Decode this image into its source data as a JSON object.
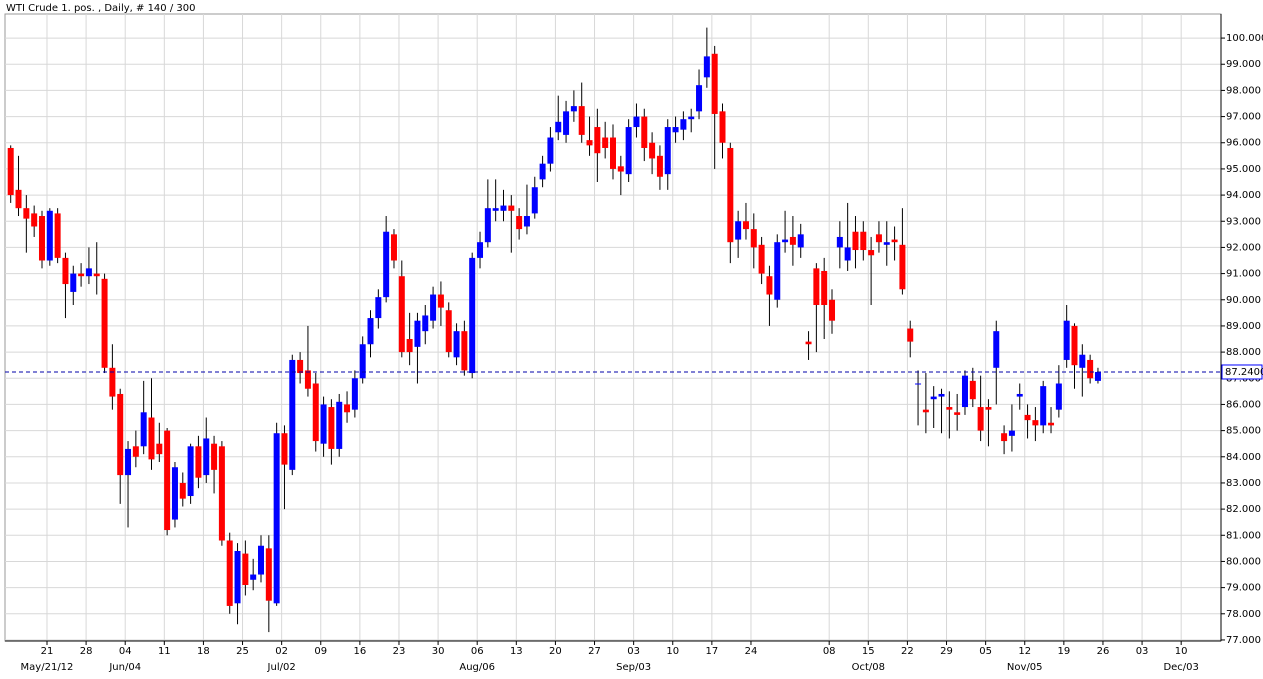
{
  "chart_data": {
    "type": "candlestick",
    "title": "WTI Crude 1. pos. , Daily, # 140 / 300",
    "categories": [
      null,
      null,
      null,
      null,
      "21",
      null,
      null,
      null,
      null,
      "28",
      null,
      null,
      null,
      null,
      "04",
      null,
      null,
      null,
      null,
      "11",
      null,
      null,
      null,
      null,
      "18",
      null,
      null,
      null,
      null,
      "25",
      null,
      null,
      null,
      null,
      "02",
      null,
      null,
      null,
      null,
      "09",
      null,
      null,
      null,
      null,
      "16",
      null,
      null,
      null,
      null,
      "23",
      null,
      null,
      null,
      null,
      "30",
      null,
      null,
      null,
      null,
      "06",
      null,
      null,
      null,
      null,
      "13",
      null,
      null,
      null,
      null,
      "20",
      null,
      null,
      null,
      null,
      "27",
      null,
      null,
      null,
      null,
      "03",
      null,
      null,
      null,
      null,
      "10",
      null,
      null,
      null,
      null,
      "17",
      null,
      null,
      null,
      null,
      "24",
      null,
      null,
      null,
      null,
      null,
      null,
      null,
      null,
      null,
      "08",
      null,
      null,
      null,
      null,
      "15",
      null,
      null,
      null,
      null,
      "22",
      null,
      null,
      null,
      null,
      "29",
      null,
      null,
      null,
      null,
      "05",
      null,
      null,
      null,
      null,
      "12",
      null,
      null,
      null,
      null,
      "19",
      null,
      null,
      null,
      null,
      "26",
      null,
      null,
      null,
      null,
      "03",
      null,
      null,
      null,
      null,
      "10"
    ],
    "period_labels": [
      null,
      null,
      null,
      null,
      "May/21/12",
      null,
      null,
      null,
      null,
      null,
      null,
      null,
      null,
      null,
      "Jun/04",
      null,
      null,
      null,
      null,
      null,
      null,
      null,
      null,
      null,
      null,
      null,
      null,
      null,
      null,
      null,
      null,
      null,
      null,
      null,
      "Jul/02",
      null,
      null,
      null,
      null,
      null,
      null,
      null,
      null,
      null,
      null,
      null,
      null,
      null,
      null,
      null,
      null,
      null,
      null,
      null,
      null,
      null,
      null,
      null,
      null,
      "Aug/06",
      null,
      null,
      null,
      null,
      null,
      null,
      null,
      null,
      null,
      null,
      null,
      null,
      null,
      null,
      null,
      null,
      null,
      null,
      null,
      "Sep/03",
      null,
      null,
      null,
      null,
      null,
      null,
      null,
      null,
      null,
      null,
      null,
      null,
      null,
      null,
      null,
      null,
      null,
      null,
      null,
      null,
      null,
      null,
      null,
      null,
      null,
      null,
      null,
      null,
      null,
      "Oct/08",
      null,
      null,
      null,
      null,
      null,
      null,
      null,
      null,
      null,
      null,
      null,
      null,
      null,
      null,
      null,
      null,
      null,
      null,
      null,
      "Nov/05",
      null,
      null,
      null,
      null,
      null,
      null,
      null,
      null,
      null,
      null,
      null,
      null,
      null,
      null,
      null,
      null,
      null,
      null,
      null,
      "Dec/03",
      null,
      null,
      null,
      null,
      null
    ],
    "open": [
      95.8,
      94.2,
      93.5,
      93.3,
      93.2,
      91.5,
      93.3,
      91.6,
      90.3,
      91.0,
      90.9,
      91.0,
      90.8,
      87.4,
      86.4,
      83.3,
      84.4,
      84.4,
      85.5,
      84.5,
      85.0,
      81.6,
      83.0,
      82.5,
      84.4,
      83.3,
      84.5,
      84.4,
      80.8,
      78.4,
      80.3,
      79.3,
      79.5,
      80.5,
      78.4,
      84.9,
      83.5,
      87.7,
      87.3,
      86.8,
      84.5,
      85.9,
      84.3,
      86.0,
      85.8,
      87.0,
      88.3,
      89.3,
      90.1,
      92.5,
      90.9,
      88.5,
      88.2,
      88.8,
      89.2,
      90.2,
      89.6,
      87.8,
      88.8,
      87.2,
      91.6,
      92.2,
      93.4,
      93.4,
      93.6,
      93.2,
      92.8,
      93.3,
      94.6,
      95.2,
      96.4,
      96.3,
      97.2,
      97.4,
      96.1,
      96.6,
      96.2,
      96.2,
      95.1,
      94.8,
      96.6,
      97.0,
      96.0,
      95.5,
      94.8,
      96.4,
      96.5,
      96.9,
      97.2,
      98.5,
      99.4,
      97.2,
      95.8,
      92.3,
      93.0,
      92.7,
      92.1,
      90.9,
      90.0,
      92.2,
      92.4,
      92.0,
      88.4,
      91.2,
      91.1,
      90.0,
      92.0,
      91.5,
      92.6,
      92.6,
      91.9,
      92.5,
      92.1,
      92.3,
      92.1,
      88.9,
      86.8,
      85.8,
      86.2,
      86.3,
      85.9,
      85.7,
      85.9,
      86.9,
      85.9,
      85.9,
      87.4,
      84.9,
      84.8,
      86.3,
      85.6,
      85.4,
      85.2,
      85.3,
      85.8,
      87.7,
      89.0,
      87.4,
      87.7,
      86.9,
      null,
      null,
      null,
      null,
      null,
      null,
      null,
      null,
      null,
      null
    ],
    "high": [
      95.9,
      95.5,
      94.0,
      93.6,
      93.4,
      93.5,
      93.5,
      91.8,
      91.3,
      91.4,
      92.0,
      92.2,
      91.0,
      88.3,
      86.6,
      84.6,
      85.0,
      86.9,
      87.0,
      85.3,
      85.1,
      83.8,
      83.4,
      84.5,
      84.8,
      85.5,
      84.8,
      84.6,
      81.1,
      80.7,
      80.8,
      80.1,
      81.0,
      81.0,
      85.3,
      85.2,
      87.9,
      88.0,
      89.0,
      87.2,
      86.3,
      86.2,
      86.4,
      86.5,
      87.3,
      88.6,
      89.6,
      90.4,
      93.2,
      92.7,
      91.5,
      89.5,
      89.5,
      89.8,
      90.5,
      90.7,
      89.9,
      89.1,
      89.2,
      91.8,
      92.6,
      94.6,
      94.6,
      94.2,
      94.0,
      93.5,
      94.4,
      94.7,
      95.5,
      96.6,
      97.8,
      97.6,
      98.0,
      98.3,
      97.0,
      97.3,
      96.8,
      96.7,
      95.5,
      96.9,
      97.5,
      97.3,
      96.4,
      95.9,
      96.9,
      97.0,
      97.2,
      97.3,
      98.8,
      100.4,
      99.7,
      97.5,
      96.0,
      93.4,
      93.7,
      93.3,
      92.4,
      91.3,
      92.5,
      93.4,
      93.2,
      92.9,
      88.8,
      91.4,
      91.6,
      90.4,
      93.0,
      93.7,
      93.2,
      93.0,
      92.4,
      93.0,
      93.0,
      92.8,
      93.5,
      89.2,
      87.3,
      87.2,
      86.7,
      86.6,
      86.5,
      86.4,
      87.3,
      87.4,
      87.1,
      86.2,
      89.2,
      85.2,
      86.0,
      86.8,
      86.0,
      85.9,
      86.9,
      85.9,
      87.5,
      89.8,
      89.1,
      88.3,
      87.9,
      87.4,
      null,
      null,
      null,
      null,
      null,
      null,
      null,
      null,
      null,
      null
    ],
    "low": [
      93.7,
      93.2,
      91.8,
      92.4,
      91.2,
      91.3,
      91.4,
      89.3,
      89.8,
      90.5,
      90.6,
      90.2,
      87.2,
      85.8,
      82.2,
      81.3,
      83.6,
      84.1,
      83.5,
      83.8,
      81.0,
      81.3,
      82.1,
      82.2,
      82.8,
      83.0,
      82.6,
      80.6,
      78.0,
      77.6,
      78.7,
      78.9,
      79.2,
      77.3,
      78.3,
      82.0,
      83.3,
      86.8,
      86.3,
      84.2,
      84.0,
      83.7,
      84.0,
      85.3,
      85.5,
      86.8,
      87.8,
      88.9,
      89.9,
      91.2,
      87.8,
      87.5,
      86.8,
      88.3,
      88.9,
      89.0,
      87.8,
      87.5,
      87.1,
      87.0,
      91.2,
      92.0,
      93.0,
      93.0,
      91.8,
      92.3,
      92.5,
      93.1,
      94.3,
      94.9,
      96.1,
      96.0,
      96.8,
      96.0,
      95.5,
      94.5,
      95.4,
      94.6,
      94.0,
      94.5,
      96.2,
      95.3,
      94.8,
      94.2,
      94.2,
      96.0,
      96.1,
      96.4,
      96.9,
      98.1,
      95.0,
      95.4,
      91.4,
      91.6,
      92.3,
      91.2,
      90.6,
      89.0,
      89.7,
      91.8,
      91.3,
      91.6,
      87.7,
      88.0,
      88.5,
      88.7,
      91.2,
      91.1,
      91.2,
      91.5,
      89.8,
      91.8,
      91.3,
      91.5,
      90.2,
      87.8,
      85.2,
      84.9,
      85.1,
      84.9,
      84.7,
      85.0,
      85.6,
      85.9,
      84.6,
      84.4,
      86.0,
      84.1,
      84.2,
      85.8,
      84.7,
      84.6,
      84.9,
      84.9,
      85.5,
      87.4,
      86.6,
      86.3,
      86.8,
      86.8,
      null,
      null,
      null,
      null,
      null,
      null,
      null,
      null,
      null,
      null
    ],
    "close": [
      94.0,
      93.5,
      93.1,
      92.8,
      91.5,
      93.4,
      91.6,
      90.6,
      91.0,
      90.9,
      91.2,
      90.9,
      87.4,
      86.3,
      83.3,
      84.3,
      84.0,
      85.7,
      83.9,
      84.1,
      81.2,
      83.6,
      82.4,
      84.4,
      83.2,
      84.7,
      83.5,
      80.8,
      78.3,
      80.4,
      79.1,
      79.5,
      80.6,
      78.5,
      84.9,
      83.7,
      87.7,
      87.2,
      86.6,
      84.6,
      86.0,
      84.3,
      86.1,
      85.7,
      87.0,
      88.3,
      89.3,
      90.1,
      92.6,
      91.5,
      88.0,
      88.0,
      89.2,
      89.4,
      90.2,
      89.7,
      88.0,
      88.8,
      87.3,
      91.6,
      92.2,
      93.5,
      93.5,
      93.6,
      93.4,
      92.7,
      93.2,
      94.3,
      95.2,
      96.2,
      96.8,
      97.2,
      97.4,
      96.3,
      95.9,
      95.6,
      95.8,
      95.0,
      94.9,
      96.6,
      97.0,
      95.8,
      95.4,
      94.7,
      96.6,
      96.6,
      96.9,
      97.0,
      98.2,
      99.3,
      97.1,
      96.0,
      92.2,
      93.0,
      92.7,
      92.0,
      91.0,
      90.2,
      92.2,
      92.3,
      92.1,
      92.5,
      88.3,
      89.8,
      89.8,
      89.2,
      92.4,
      92.0,
      91.9,
      91.9,
      91.7,
      92.2,
      92.2,
      92.2,
      90.4,
      88.4,
      86.8,
      85.7,
      86.3,
      86.4,
      85.8,
      85.6,
      87.1,
      86.2,
      85.0,
      85.8,
      88.8,
      84.6,
      85.0,
      86.4,
      85.4,
      85.2,
      86.7,
      85.2,
      86.8,
      89.2,
      87.5,
      87.9,
      87.0,
      87.24,
      null,
      null,
      null,
      null,
      null,
      null,
      null,
      null,
      null,
      null
    ],
    "up_color": "#0000ff",
    "down_color": "#ff0000",
    "ylim": [
      76.96,
      100.92
    ],
    "yticks": [
      {
        "value": 77,
        "label": "77.000"
      },
      {
        "value": 78,
        "label": "78.000"
      },
      {
        "value": 79,
        "label": "79.000"
      },
      {
        "value": 80,
        "label": "80.000"
      },
      {
        "value": 81,
        "label": "81.000"
      },
      {
        "value": 82,
        "label": "82.000"
      },
      {
        "value": 83,
        "label": "83.000"
      },
      {
        "value": 84,
        "label": "84.000"
      },
      {
        "value": 85,
        "label": "85.000"
      },
      {
        "value": 86,
        "label": "86.000"
      },
      {
        "value": 87,
        "label": "87.000"
      },
      {
        "value": 88,
        "label": "88.000"
      },
      {
        "value": 89,
        "label": "89.000"
      },
      {
        "value": 90,
        "label": "90.000"
      },
      {
        "value": 91,
        "label": "91.000"
      },
      {
        "value": 92,
        "label": "92.000"
      },
      {
        "value": 93,
        "label": "93.000"
      },
      {
        "value": 94,
        "label": "94.000"
      },
      {
        "value": 95,
        "label": "95.000"
      },
      {
        "value": 96,
        "label": "96.000"
      },
      {
        "value": 97,
        "label": "97.000"
      },
      {
        "value": 98,
        "label": "98.000"
      },
      {
        "value": 99,
        "label": "99.000"
      },
      {
        "value": 100,
        "label": "100.000"
      }
    ],
    "last_price": {
      "value": 87.24,
      "label": "87.2400"
    },
    "grid": true
  }
}
